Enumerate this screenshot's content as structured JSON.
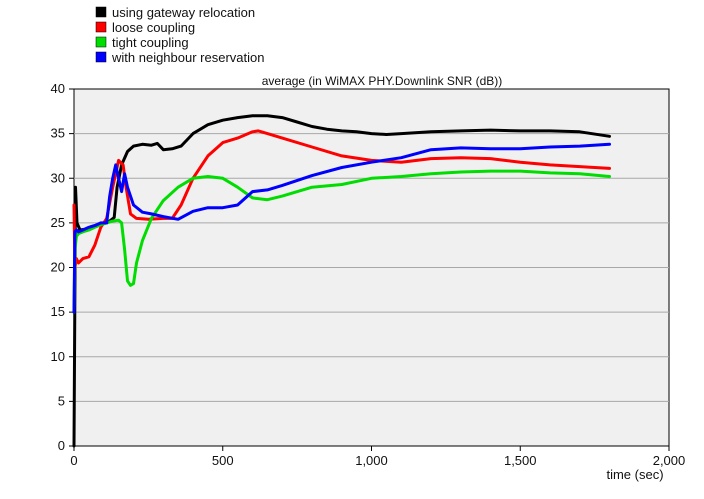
{
  "chart_data": {
    "type": "line",
    "title": "average (in WiMAX PHY.Downlink SNR (dB))",
    "xlabel": "time (sec)",
    "ylabel": "",
    "xlim": [
      0,
      2000
    ],
    "ylim": [
      0,
      40
    ],
    "x_ticks": [
      0,
      500,
      1000,
      1500,
      2000
    ],
    "x_tick_labels": [
      "0",
      "500",
      "1,000",
      "1,500",
      "2,000"
    ],
    "y_ticks": [
      0,
      5,
      10,
      15,
      20,
      25,
      30,
      35,
      40
    ],
    "y_tick_labels": [
      "0",
      "5",
      "10",
      "15",
      "20",
      "25",
      "30",
      "35",
      "40"
    ],
    "grid": "horizontal",
    "legend_position": "top-left",
    "background": "#f0f0f0",
    "series": [
      {
        "name": "using gateway relocation",
        "color": "#000000",
        "x": [
          0,
          5,
          10,
          20,
          40,
          60,
          80,
          100,
          120,
          135,
          145,
          160,
          180,
          200,
          230,
          260,
          280,
          300,
          330,
          360,
          400,
          450,
          500,
          550,
          600,
          650,
          700,
          750,
          800,
          850,
          900,
          950,
          1000,
          1050,
          1100,
          1200,
          1300,
          1400,
          1500,
          1600,
          1700,
          1800
        ],
        "y": [
          0,
          29,
          25,
          24.2,
          24.3,
          24.6,
          24.8,
          25,
          25.2,
          25.6,
          29,
          31.5,
          33,
          33.6,
          33.8,
          33.7,
          33.9,
          33.2,
          33.3,
          33.6,
          35,
          36,
          36.5,
          36.8,
          37,
          37,
          36.8,
          36.3,
          35.8,
          35.5,
          35.3,
          35.2,
          35,
          34.9,
          35,
          35.2,
          35.3,
          35.4,
          35.3,
          35.3,
          35.2,
          34.7
        ]
      },
      {
        "name": "loose coupling",
        "color": "#ff0000",
        "x": [
          0,
          3,
          8,
          15,
          30,
          50,
          70,
          90,
          110,
          130,
          150,
          165,
          175,
          190,
          210,
          250,
          300,
          330,
          360,
          400,
          450,
          500,
          550,
          600,
          620,
          650,
          700,
          800,
          900,
          1000,
          1100,
          1200,
          1300,
          1400,
          1500,
          1600,
          1700,
          1800
        ],
        "y": [
          27,
          20,
          21,
          20.5,
          21,
          21.2,
          22.5,
          24.5,
          25.5,
          29,
          32,
          31.5,
          29,
          26,
          25.5,
          25.4,
          25.5,
          25.5,
          27,
          30,
          32.5,
          34,
          34.5,
          35.2,
          35.3,
          35,
          34.5,
          33.5,
          32.5,
          32,
          31.8,
          32.2,
          32.3,
          32.2,
          31.8,
          31.5,
          31.3,
          31.1
        ]
      },
      {
        "name": "tight coupling",
        "color": "#00dd00",
        "x": [
          0,
          3,
          8,
          15,
          30,
          50,
          70,
          90,
          110,
          130,
          150,
          160,
          170,
          180,
          190,
          200,
          210,
          230,
          260,
          300,
          350,
          400,
          450,
          500,
          550,
          600,
          650,
          700,
          800,
          900,
          1000,
          1100,
          1200,
          1300,
          1400,
          1500,
          1600,
          1700,
          1800
        ],
        "y": [
          15,
          22,
          23.5,
          23.8,
          24,
          24.2,
          24.5,
          24.8,
          25,
          25.2,
          25.3,
          25,
          22,
          18.5,
          18,
          18.2,
          20.5,
          23,
          25.5,
          27.5,
          29,
          30,
          30.2,
          30,
          29,
          27.8,
          27.6,
          28,
          29,
          29.3,
          30,
          30.2,
          30.5,
          30.7,
          30.8,
          30.8,
          30.6,
          30.5,
          30.2
        ]
      },
      {
        "name": "with neighbour reservation",
        "color": "#0000ff",
        "x": [
          0,
          3,
          8,
          15,
          30,
          50,
          70,
          90,
          110,
          120,
          130,
          140,
          150,
          160,
          170,
          180,
          200,
          230,
          260,
          300,
          350,
          400,
          450,
          500,
          550,
          600,
          650,
          700,
          800,
          900,
          1000,
          1100,
          1200,
          1300,
          1400,
          1500,
          1600,
          1700,
          1800
        ],
        "y": [
          15,
          24,
          24.2,
          24,
          24.2,
          24.5,
          24.7,
          25,
          25,
          28,
          30,
          31.5,
          30,
          28.5,
          30.5,
          29,
          27,
          26.2,
          26,
          25.7,
          25.4,
          26.3,
          26.7,
          26.7,
          27,
          28.5,
          28.7,
          29.2,
          30.3,
          31.2,
          31.8,
          32.3,
          33.2,
          33.4,
          33.3,
          33.3,
          33.5,
          33.6,
          33.8
        ]
      }
    ]
  }
}
